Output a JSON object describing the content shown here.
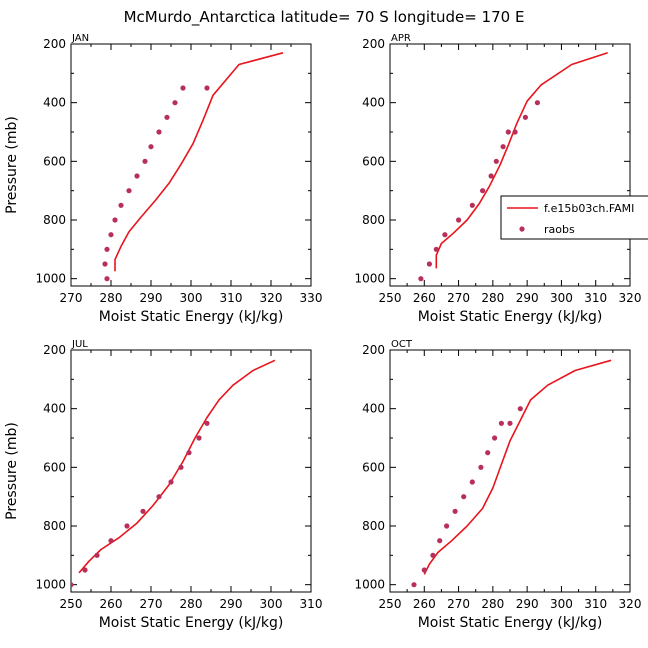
{
  "title": "McMurdo_Antarctica  latitude= 70 S longitude= 170 E",
  "colors": {
    "model_line": "#e8141c",
    "raobs_marker": "#b8305a",
    "axis": "#000000",
    "background": "#ffffff"
  },
  "legend": {
    "model_label": "f.e15b03ch.FAMI",
    "obs_label": "raobs"
  },
  "chart_data": [
    {
      "type": "line",
      "panel": "JAN",
      "xlabel": "Moist Static Energy (kJ/kg)",
      "ylabel": "Pressure (mb)",
      "xlim": [
        270,
        330
      ],
      "ylim": [
        1025,
        200
      ],
      "xticks": [
        270,
        280,
        290,
        300,
        310,
        320,
        330
      ],
      "yticks": [
        200,
        400,
        600,
        800,
        1000
      ],
      "series": [
        {
          "name": "f.e15b03ch.FAMI",
          "kind": "line",
          "x": [
            281.0,
            281.0,
            282.5,
            284.5,
            287.5,
            291.0,
            294.5,
            297.5,
            300.5,
            303.0,
            305.5,
            312.0,
            323.0
          ],
          "y": [
            975,
            935,
            890,
            840,
            790,
            735,
            675,
            610,
            540,
            460,
            375,
            270,
            230
          ]
        },
        {
          "name": "raobs",
          "kind": "scatter",
          "x": [
            279.0,
            278.5,
            279.0,
            280.0,
            281.0,
            282.5,
            284.5,
            286.5,
            288.5,
            290.0,
            292.0,
            294.0,
            296.0,
            298.0,
            304.0
          ],
          "y": [
            1000,
            950,
            900,
            850,
            800,
            750,
            700,
            650,
            600,
            550,
            500,
            450,
            400,
            350,
            350
          ]
        }
      ]
    },
    {
      "type": "line",
      "panel": "APR",
      "xlabel": "Moist Static Energy (kJ/kg)",
      "ylabel": "",
      "xlim": [
        250,
        320
      ],
      "ylim": [
        1025,
        200
      ],
      "xticks": [
        250,
        260,
        270,
        280,
        290,
        300,
        310,
        320
      ],
      "yticks": [
        200,
        400,
        600,
        800,
        1000
      ],
      "series": [
        {
          "name": "f.e15b03ch.FAMI",
          "kind": "line",
          "x": [
            263.5,
            263.5,
            265.0,
            268.5,
            272.5,
            276.0,
            279.0,
            282.0,
            284.5,
            287.0,
            290.0,
            294.0,
            303.0,
            313.5
          ],
          "y": [
            965,
            920,
            880,
            845,
            800,
            745,
            685,
            615,
            545,
            470,
            395,
            340,
            270,
            230
          ]
        },
        {
          "name": "raobs",
          "kind": "scatter",
          "x": [
            259.0,
            261.5,
            263.5,
            266.0,
            270.0,
            274.0,
            277.0,
            279.5,
            281.0,
            283.0,
            284.5,
            286.5,
            289.5,
            293.0
          ],
          "y": [
            1000,
            950,
            900,
            850,
            800,
            750,
            700,
            650,
            600,
            550,
            500,
            500,
            450,
            400
          ]
        }
      ]
    },
    {
      "type": "line",
      "panel": "JUL",
      "xlabel": "Moist Static Energy (kJ/kg)",
      "ylabel": "Pressure (mb)",
      "xlim": [
        250,
        310
      ],
      "ylim": [
        1025,
        200
      ],
      "xticks": [
        250,
        260,
        270,
        280,
        290,
        300,
        310
      ],
      "yticks": [
        200,
        400,
        600,
        800,
        1000
      ],
      "series": [
        {
          "name": "f.e15b03ch.FAMI",
          "kind": "line",
          "x": [
            252.0,
            254.5,
            257.5,
            262.0,
            266.5,
            270.5,
            274.5,
            278.0,
            281.0,
            284.0,
            287.0,
            290.5,
            295.5,
            301.0
          ],
          "y": [
            960,
            920,
            880,
            840,
            790,
            730,
            660,
            580,
            500,
            430,
            370,
            320,
            270,
            235
          ]
        },
        {
          "name": "raobs",
          "kind": "scatter",
          "x": [
            250.0,
            253.5,
            256.5,
            260.0,
            264.0,
            268.0,
            272.0,
            275.0,
            277.5,
            279.5,
            282.0,
            284.0
          ],
          "y": [
            1000,
            950,
            900,
            850,
            800,
            750,
            700,
            650,
            600,
            550,
            500,
            450
          ]
        }
      ]
    },
    {
      "type": "line",
      "panel": "OCT",
      "xlabel": "Moist Static Energy (kJ/kg)",
      "ylabel": "",
      "xlim": [
        250,
        320
      ],
      "ylim": [
        1025,
        200
      ],
      "xticks": [
        250,
        260,
        270,
        280,
        290,
        300,
        310,
        320
      ],
      "yticks": [
        200,
        400,
        600,
        800,
        1000
      ],
      "series": [
        {
          "name": "f.e15b03ch.FAMI",
          "kind": "line",
          "x": [
            260.0,
            261.5,
            264.0,
            268.0,
            272.5,
            277.0,
            280.0,
            282.5,
            285.0,
            288.0,
            291.0,
            296.0,
            304.0,
            314.5
          ],
          "y": [
            965,
            930,
            890,
            850,
            800,
            740,
            670,
            590,
            510,
            440,
            370,
            320,
            270,
            235
          ]
        },
        {
          "name": "raobs",
          "kind": "scatter",
          "x": [
            257.0,
            260.0,
            262.5,
            264.5,
            266.5,
            269.0,
            271.5,
            274.0,
            276.5,
            278.5,
            280.5,
            282.5,
            285.0,
            288.0
          ],
          "y": [
            1000,
            950,
            900,
            850,
            800,
            750,
            700,
            650,
            600,
            550,
            500,
            450,
            450,
            400
          ]
        }
      ]
    }
  ]
}
